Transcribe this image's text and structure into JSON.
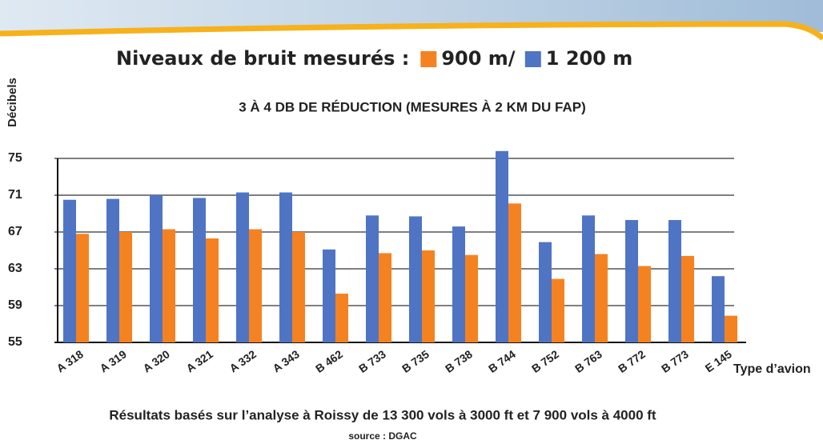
{
  "chart_data": {
    "type": "bar",
    "title": "Niveaux de bruit mesurés :",
    "subtitle": "3 À 4 DB DE RÉDUCTION (MESURES À 2 KM DU FAP)",
    "y_label": "Décibels",
    "x_label": "Type d’avion",
    "footnote": "Résultats basés sur l’analyse à Roissy de 13 300 vols à 3000 ft et 7 900 vols à 4000 ft",
    "source": "source : DGAC",
    "categories": [
      "A 318",
      "A 319",
      "A 320",
      "A 321",
      "A 332",
      "A 343",
      "B 462",
      "B 733",
      "B 735",
      "B 738",
      "B 744",
      "B 752",
      "B 763",
      "B 772",
      "B 773",
      "E 145"
    ],
    "series": [
      {
        "name": "900 m/",
        "color": "#f58220",
        "values": [
          66.8,
          67.0,
          67.3,
          66.3,
          67.3,
          67.0,
          60.3,
          64.7,
          65.0,
          64.5,
          70.1,
          61.9,
          64.6,
          63.3,
          64.4,
          57.9
        ]
      },
      {
        "name": "1 200 m",
        "color": "#4f74c4",
        "values": [
          70.5,
          70.6,
          71.0,
          70.7,
          71.3,
          71.3,
          65.1,
          68.8,
          68.7,
          67.6,
          75.8,
          65.9,
          68.8,
          68.3,
          68.3,
          62.2
        ]
      }
    ],
    "ylim": [
      55,
      75
    ],
    "yticks": [
      55,
      59,
      63,
      67,
      71,
      75
    ],
    "grid": true
  }
}
